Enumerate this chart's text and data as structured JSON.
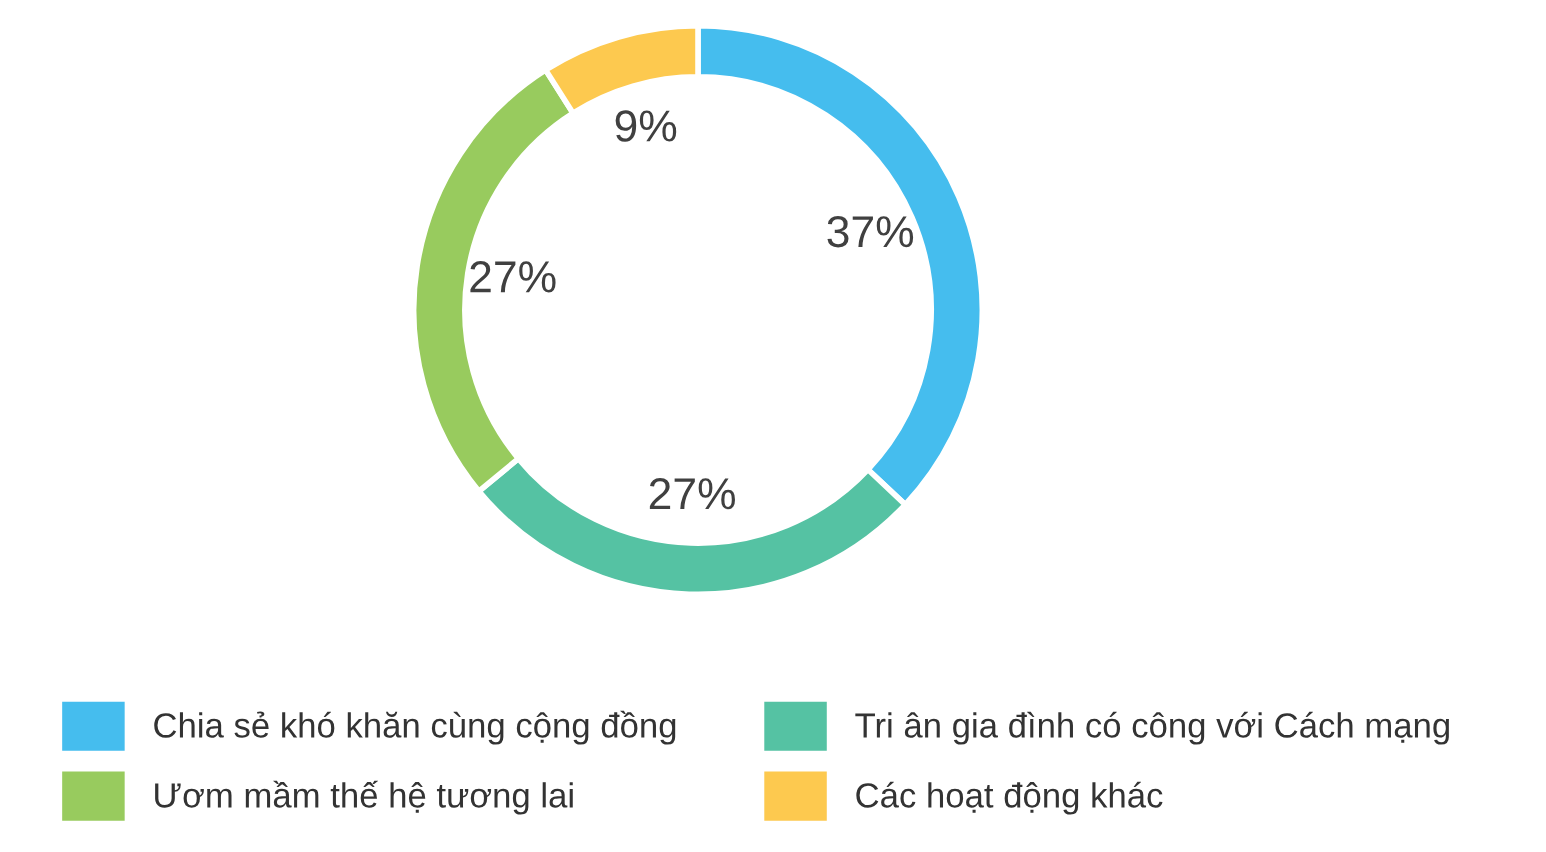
{
  "chart_data": {
    "type": "donut",
    "categories": [
      "Chia sẻ khó khăn cùng cộng đồng",
      "Tri ân gia đình có công với Cách mạng",
      "Ươm mầm thế hệ tương lai",
      "Các hoạt động khác"
    ],
    "values": [
      37,
      27,
      27,
      9
    ],
    "colors": [
      "#45bdee",
      "#55c2a3",
      "#98cb5e",
      "#fdc94f"
    ],
    "value_labels": [
      "37%",
      "27%",
      "27%",
      "9%"
    ],
    "legend": "bottom"
  }
}
